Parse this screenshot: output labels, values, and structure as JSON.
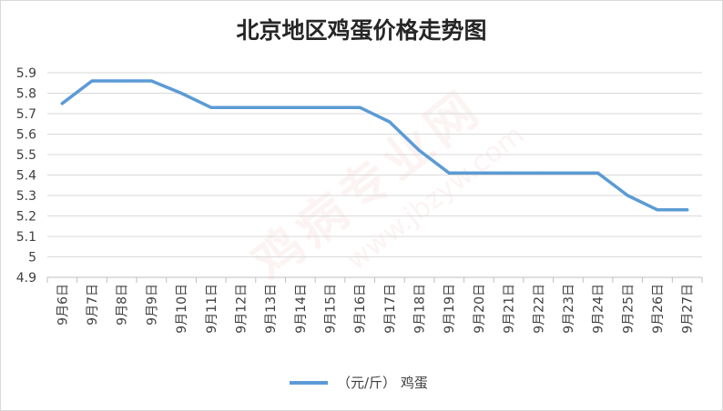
{
  "chart_data": {
    "type": "line",
    "title": "北京地区鸡蛋价格走势图",
    "categories": [
      "9月6日",
      "9月7日",
      "9月8日",
      "9月9日",
      "9月10日",
      "9月11日",
      "9月12日",
      "9月13日",
      "9月14日",
      "9月15日",
      "9月16日",
      "9月17日",
      "9月18日",
      "9月19日",
      "9月20日",
      "9月21日",
      "9月22日",
      "9月23日",
      "9月24日",
      "9月25日",
      "9月26日",
      "9月27日"
    ],
    "series": [
      {
        "name": "（元/斤） 鸡蛋",
        "color": "#5b9bd5",
        "values": [
          5.75,
          5.86,
          5.86,
          5.86,
          5.8,
          5.73,
          5.73,
          5.73,
          5.73,
          5.73,
          5.73,
          5.66,
          5.52,
          5.41,
          5.41,
          5.41,
          5.41,
          5.41,
          5.41,
          5.3,
          5.23,
          5.23
        ]
      }
    ],
    "ylim": [
      4.9,
      5.9
    ],
    "yticks": [
      "4.9",
      "5",
      "5.1",
      "5.2",
      "5.3",
      "5.4",
      "5.5",
      "5.6",
      "5.7",
      "5.8",
      "5.9"
    ],
    "grid": true,
    "legend": "bottom"
  },
  "watermark": {
    "text": "鸡病专业网",
    "url": "www.jbzyw.com"
  }
}
